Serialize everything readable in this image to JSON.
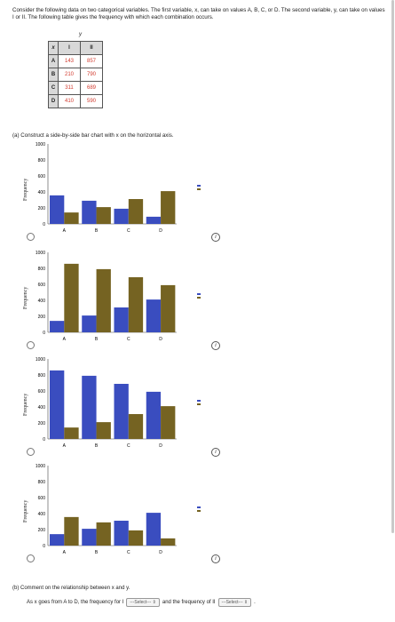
{
  "intro_text": "Consider the following data on two categorical variables. The first variable, x, can take on values A, B, C, or D. The second variable, y, can take on values I or II. The following table gives the frequency with which each combination occurs.",
  "table": {
    "x_label": "x",
    "y_label": "y",
    "col_headers": [
      "I",
      "II"
    ],
    "rows": [
      {
        "label": "A",
        "values": [
          "143",
          "857"
        ]
      },
      {
        "label": "B",
        "values": [
          "210",
          "790"
        ]
      },
      {
        "label": "C",
        "values": [
          "311",
          "689"
        ]
      },
      {
        "label": "D",
        "values": [
          "410",
          "590"
        ]
      }
    ]
  },
  "part_a_prompt": "(a)  Construct a side-by-side bar chart with x on the horizontal axis.",
  "info_icon_glyph": "i",
  "colors": {
    "series_I": "#3a4dbf",
    "series_II": "#756322"
  },
  "chart_data": [
    {
      "type": "bar",
      "title": "",
      "xlabel": "",
      "ylabel": "Frequency",
      "categories": [
        "A",
        "B",
        "C",
        "D"
      ],
      "ylim": [
        0,
        1000
      ],
      "yticks": [
        0,
        200,
        400,
        600,
        800,
        1000
      ],
      "series": [
        {
          "values": [
            357,
            290,
            190,
            90
          ]
        },
        {
          "values": [
            143,
            210,
            311,
            410
          ]
        }
      ]
    },
    {
      "type": "bar",
      "title": "",
      "xlabel": "",
      "ylabel": "Frequency",
      "categories": [
        "A",
        "B",
        "C",
        "D"
      ],
      "ylim": [
        0,
        1000
      ],
      "yticks": [
        0,
        200,
        400,
        600,
        800,
        1000
      ],
      "series": [
        {
          "values": [
            143,
            210,
            311,
            410
          ]
        },
        {
          "values": [
            857,
            790,
            689,
            590
          ]
        }
      ]
    },
    {
      "type": "bar",
      "title": "",
      "xlabel": "",
      "ylabel": "Frequency",
      "categories": [
        "A",
        "B",
        "C",
        "D"
      ],
      "ylim": [
        0,
        1000
      ],
      "yticks": [
        0,
        200,
        400,
        600,
        800,
        1000
      ],
      "series": [
        {
          "values": [
            857,
            790,
            689,
            590
          ]
        },
        {
          "values": [
            143,
            210,
            311,
            410
          ]
        }
      ]
    },
    {
      "type": "bar",
      "title": "",
      "xlabel": "",
      "ylabel": "Frequency",
      "categories": [
        "A",
        "B",
        "C",
        "D"
      ],
      "ylim": [
        0,
        1000
      ],
      "yticks": [
        0,
        200,
        400,
        600,
        800,
        1000
      ],
      "series": [
        {
          "values": [
            143,
            210,
            311,
            410
          ]
        },
        {
          "values": [
            357,
            290,
            190,
            90
          ]
        }
      ]
    }
  ],
  "part_b_prompt": "(b)  Comment on the relationship between x and y.",
  "sentence": {
    "prefix": "As x goes from A to D, the frequency for I",
    "select1": "---Select---",
    "middle": "and the frequency of II",
    "select2": "---Select---",
    "suffix": "."
  }
}
